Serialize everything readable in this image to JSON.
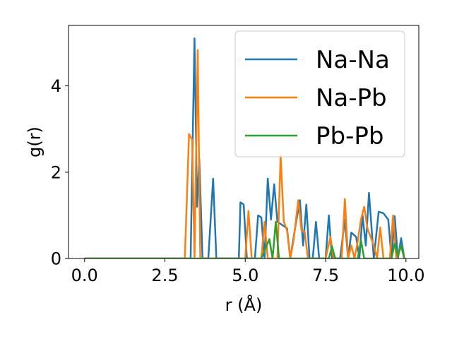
{
  "chart_data": {
    "type": "line",
    "title": "",
    "xlabel": "r (Å)",
    "ylabel": "g(r)",
    "xlim": [
      -0.5,
      10.4
    ],
    "ylim": [
      0,
      5.4
    ],
    "xticks": [
      0.0,
      2.5,
      5.0,
      7.5,
      10.0
    ],
    "xtick_labels": [
      "0.0",
      "2.5",
      "5.0",
      "7.5",
      "10.0"
    ],
    "yticks": [
      0,
      2,
      4
    ],
    "ytick_labels": [
      "0",
      "2",
      "4"
    ],
    "grid": false,
    "legend_position": "top-right",
    "series": [
      {
        "name": "Na-Na",
        "color": "#1f77b4",
        "points": [
          [
            0.0,
            0
          ],
          [
            3.15,
            0
          ],
          [
            3.3,
            0
          ],
          [
            3.42,
            5.1
          ],
          [
            3.5,
            1.2
          ],
          [
            3.57,
            2.3
          ],
          [
            3.67,
            0
          ],
          [
            3.85,
            0
          ],
          [
            4.0,
            1.85
          ],
          [
            4.1,
            0
          ],
          [
            4.3,
            0
          ],
          [
            4.5,
            0
          ],
          [
            4.6,
            0
          ],
          [
            4.8,
            0
          ],
          [
            4.85,
            1.3
          ],
          [
            4.95,
            1.25
          ],
          [
            5.05,
            0
          ],
          [
            5.3,
            0
          ],
          [
            5.4,
            1.0
          ],
          [
            5.5,
            0.95
          ],
          [
            5.6,
            0
          ],
          [
            5.7,
            1.85
          ],
          [
            5.8,
            0.9
          ],
          [
            5.9,
            1.72
          ],
          [
            6.0,
            0.85
          ],
          [
            6.1,
            0.8
          ],
          [
            6.2,
            0.75
          ],
          [
            6.3,
            0.7
          ],
          [
            6.4,
            0
          ],
          [
            6.55,
            0.7
          ],
          [
            6.7,
            1.35
          ],
          [
            6.8,
            0.3
          ],
          [
            6.9,
            1.25
          ],
          [
            7.0,
            0
          ],
          [
            7.1,
            0
          ],
          [
            7.2,
            0.85
          ],
          [
            7.3,
            0
          ],
          [
            7.5,
            0
          ],
          [
            7.6,
            1.0
          ],
          [
            7.7,
            0
          ],
          [
            7.8,
            0
          ],
          [
            7.95,
            0
          ],
          [
            8.1,
            0.9
          ],
          [
            8.2,
            0
          ],
          [
            8.3,
            0.6
          ],
          [
            8.45,
            0.5
          ],
          [
            8.55,
            0
          ],
          [
            8.65,
            1.0
          ],
          [
            8.75,
            0.3
          ],
          [
            8.85,
            1.52
          ],
          [
            9.0,
            0
          ],
          [
            9.15,
            1.08
          ],
          [
            9.3,
            1.05
          ],
          [
            9.45,
            0.9
          ],
          [
            9.55,
            0
          ],
          [
            9.65,
            0.98
          ],
          [
            9.75,
            0
          ],
          [
            9.85,
            0.47
          ],
          [
            9.95,
            0
          ]
        ]
      },
      {
        "name": "Na-Pb",
        "color": "#ff7f0e",
        "points": [
          [
            0.0,
            0
          ],
          [
            3.12,
            0
          ],
          [
            3.25,
            2.88
          ],
          [
            3.35,
            2.75
          ],
          [
            3.42,
            0
          ],
          [
            3.52,
            4.83
          ],
          [
            3.6,
            0
          ],
          [
            5.0,
            0
          ],
          [
            5.1,
            1.1
          ],
          [
            5.2,
            0
          ],
          [
            5.5,
            0
          ],
          [
            5.6,
            0.85
          ],
          [
            5.7,
            0
          ],
          [
            5.9,
            0
          ],
          [
            6.0,
            0
          ],
          [
            6.1,
            2.38
          ],
          [
            6.2,
            0.85
          ],
          [
            6.3,
            0.65
          ],
          [
            6.4,
            0
          ],
          [
            6.5,
            0.4
          ],
          [
            6.65,
            1.35
          ],
          [
            6.75,
            0.65
          ],
          [
            6.85,
            0.62
          ],
          [
            6.95,
            0
          ],
          [
            7.5,
            0
          ],
          [
            7.65,
            0.5
          ],
          [
            7.75,
            0
          ],
          [
            8.0,
            0
          ],
          [
            8.1,
            1.38
          ],
          [
            8.2,
            0
          ],
          [
            8.3,
            0.3
          ],
          [
            8.4,
            0
          ],
          [
            8.5,
            0.4
          ],
          [
            8.6,
            0.9
          ],
          [
            8.7,
            1.2
          ],
          [
            8.8,
            0.7
          ],
          [
            8.9,
            0.5
          ],
          [
            9.0,
            0.3
          ],
          [
            9.1,
            0
          ],
          [
            9.2,
            0.72
          ],
          [
            9.3,
            0
          ],
          [
            9.5,
            0
          ],
          [
            9.6,
            1.0
          ],
          [
            9.7,
            0
          ],
          [
            9.85,
            0.3
          ],
          [
            9.95,
            0
          ]
        ]
      },
      {
        "name": "Pb-Pb",
        "color": "#2ca02c",
        "points": [
          [
            0.0,
            0
          ],
          [
            5.5,
            0
          ],
          [
            5.75,
            0.45
          ],
          [
            5.85,
            0
          ],
          [
            5.95,
            0.85
          ],
          [
            6.05,
            0
          ],
          [
            7.6,
            0
          ],
          [
            7.7,
            0.28
          ],
          [
            7.8,
            0
          ],
          [
            8.5,
            0
          ],
          [
            8.6,
            0.42
          ],
          [
            8.7,
            0
          ],
          [
            9.55,
            0
          ],
          [
            9.65,
            0.35
          ],
          [
            9.75,
            0.05
          ],
          [
            9.85,
            0.3
          ],
          [
            9.95,
            0
          ]
        ]
      }
    ]
  }
}
